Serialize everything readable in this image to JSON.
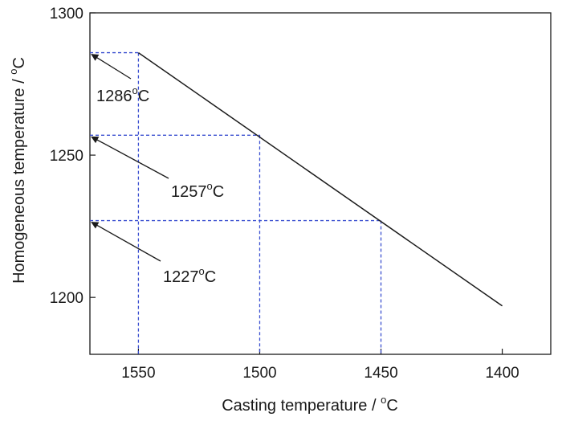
{
  "chart_data": {
    "type": "line",
    "xlabel": "Casting temperature / °C",
    "ylabel": "Homogeneous temperature / °C",
    "xlim": [
      1570,
      1380
    ],
    "ylim": [
      1180,
      1300
    ],
    "x_reversed": true,
    "x_ticks": [
      1550,
      1500,
      1450,
      1400
    ],
    "y_ticks": [
      1200,
      1250,
      1300
    ],
    "grid": false,
    "series": [
      {
        "x": [
          1550,
          1400
        ],
        "y": [
          1286,
          1197
        ],
        "color": "#1a1a1a"
      }
    ],
    "reference_lines": [
      {
        "x": 1550,
        "y": 1286
      },
      {
        "x": 1500,
        "y": 1257
      },
      {
        "x": 1450,
        "y": 1227
      }
    ],
    "reference_color": "#3a4fd0",
    "annotations": [
      {
        "value": "1286",
        "unit": "C",
        "degree_mark": "o",
        "target_y": 1286
      },
      {
        "value": "1257",
        "unit": "C",
        "degree_mark": "o",
        "target_y": 1257
      },
      {
        "value": "1227",
        "unit": "C",
        "degree_mark": "o",
        "target_y": 1227
      }
    ]
  }
}
